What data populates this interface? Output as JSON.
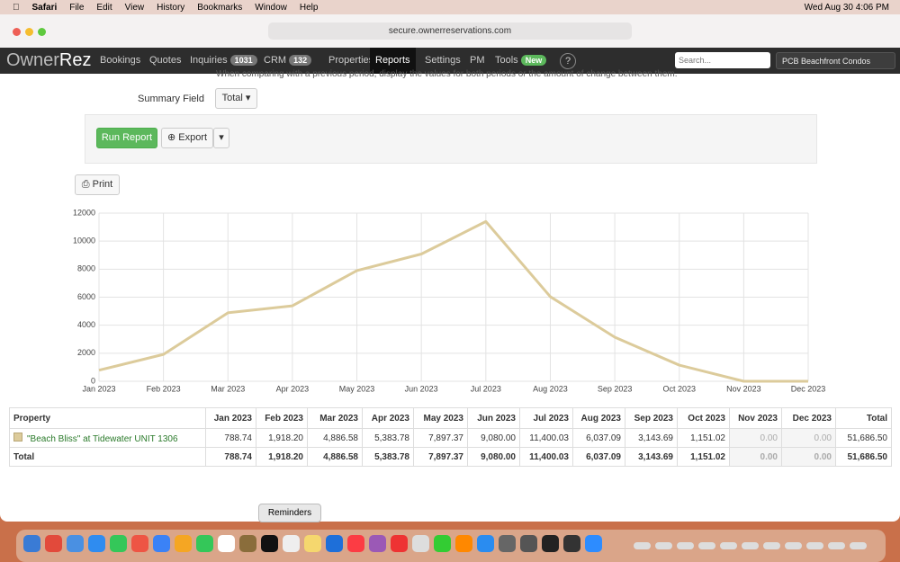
{
  "menubar": {
    "items": [
      "Safari",
      "File",
      "Edit",
      "View",
      "History",
      "Bookmarks",
      "Window",
      "Help"
    ],
    "clock": "Wed Aug 30  4:06 PM"
  },
  "browser": {
    "url": "secure.ownerreservations.com"
  },
  "navbar": {
    "logo": [
      "Owner",
      "Rez"
    ],
    "items": [
      {
        "label": "Bookings"
      },
      {
        "label": "Quotes"
      },
      {
        "label": "Inquiries",
        "badge": "1031"
      },
      {
        "label": "CRM",
        "badge": "132"
      },
      {
        "label": "Properties"
      },
      {
        "label": "Reports"
      },
      {
        "label": "Settings"
      },
      {
        "label": "PM"
      },
      {
        "label": "Tools",
        "badge": "New"
      },
      {
        "label": "?"
      }
    ],
    "search_placeholder": "Search...",
    "account": "PCB Beachfront Condos"
  },
  "form": {
    "hint": "When comparing with a previous period, display the values for both periods or the amount of change between them.",
    "summary_label": "Summary Field",
    "summary_value": "Total",
    "run": "Run Report",
    "export": "Export",
    "print": "Print"
  },
  "chart_data": {
    "type": "line",
    "categories": [
      "Jan 2023",
      "Feb 2023",
      "Mar 2023",
      "Apr 2023",
      "May 2023",
      "Jun 2023",
      "Jul 2023",
      "Aug 2023",
      "Sep 2023",
      "Oct 2023",
      "Nov 2023",
      "Dec 2023"
    ],
    "series": [
      {
        "color": "#dccb9b",
        "values": [
          788.74,
          1918.2,
          4886.58,
          5383.78,
          7897.37,
          9080.0,
          11400.03,
          6037.09,
          3143.69,
          1151.02,
          0,
          0
        ]
      }
    ],
    "ylim": [
      0,
      12000
    ],
    "yticks": [
      0,
      2000,
      4000,
      6000,
      8000,
      10000,
      12000
    ],
    "grid": true
  },
  "table": {
    "header": [
      "Property",
      "Jan 2023",
      "Feb 2023",
      "Mar 2023",
      "Apr 2023",
      "May 2023",
      "Jun 2023",
      "Jul 2023",
      "Aug 2023",
      "Sep 2023",
      "Oct 2023",
      "Nov 2023",
      "Dec 2023",
      "Total"
    ],
    "rows": [
      [
        "\"Beach Bliss\" at Tidewater UNIT 1306",
        "788.74",
        "1,918.20",
        "4,886.58",
        "5,383.78",
        "7,897.37",
        "9,080.00",
        "11,400.03",
        "6,037.09",
        "3,143.69",
        "1,151.02",
        "0.00",
        "0.00",
        "51,686.50"
      ],
      [
        "Total",
        "788.74",
        "1,918.20",
        "4,886.58",
        "5,383.78",
        "7,897.37",
        "9,080.00",
        "11,400.03",
        "6,037.09",
        "3,143.69",
        "1,151.02",
        "0.00",
        "0.00",
        "51,686.50"
      ]
    ]
  },
  "dock": {
    "tooltip": "Reminders"
  }
}
